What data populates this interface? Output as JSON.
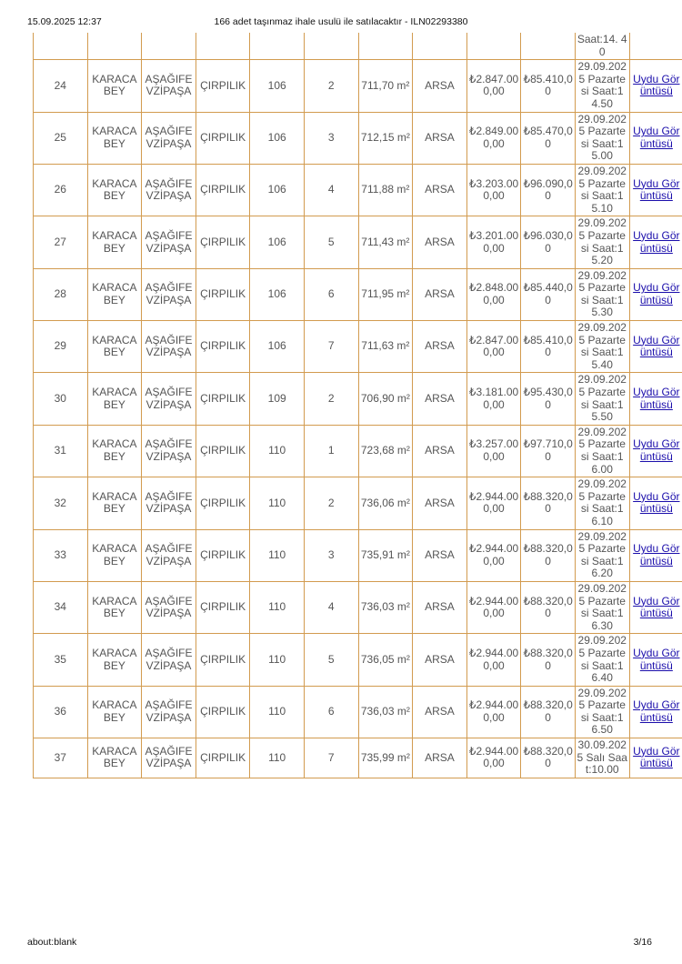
{
  "header": {
    "datetime": "15.09.2025 12:37",
    "title": "166 adet taşınmaz ihale usulü ile satılacaktır - ILN02293380"
  },
  "footer": {
    "url": "about:blank",
    "page": "3/16"
  },
  "partial_row": {
    "date": "Saat:14. 40"
  },
  "link_label": "Uydu Görüntüsü",
  "rows": [
    {
      "no": "24",
      "ilce": "KARACABEY",
      "mahalle": "AŞAĞIFEVZİPAŞA",
      "mevki": "ÇIRPILIK",
      "ada": "106",
      "parsel": "2",
      "alan": "711,70 m²",
      "nitelik": "ARSA",
      "bedel": "₺2.847.000,00",
      "teminat": "₺85.410,00",
      "tarih": "29.09.2025 Pazartesi Saat:14.50"
    },
    {
      "no": "25",
      "ilce": "KARACABEY",
      "mahalle": "AŞAĞIFEVZİPAŞA",
      "mevki": "ÇIRPILIK",
      "ada": "106",
      "parsel": "3",
      "alan": "712,15 m²",
      "nitelik": "ARSA",
      "bedel": "₺2.849.000,00",
      "teminat": "₺85.470,00",
      "tarih": "29.09.2025 Pazartesi Saat:15.00"
    },
    {
      "no": "26",
      "ilce": "KARACABEY",
      "mahalle": "AŞAĞIFEVZİPAŞA",
      "mevki": "ÇIRPILIK",
      "ada": "106",
      "parsel": "4",
      "alan": "711,88 m²",
      "nitelik": "ARSA",
      "bedel": "₺3.203.000,00",
      "teminat": "₺96.090,00",
      "tarih": "29.09.2025 Pazartesi Saat:15.10"
    },
    {
      "no": "27",
      "ilce": "KARACABEY",
      "mahalle": "AŞAĞIFEVZİPAŞA",
      "mevki": "ÇIRPILIK",
      "ada": "106",
      "parsel": "5",
      "alan": "711,43 m²",
      "nitelik": "ARSA",
      "bedel": "₺3.201.000,00",
      "teminat": "₺96.030,00",
      "tarih": "29.09.2025 Pazartesi Saat:15.20"
    },
    {
      "no": "28",
      "ilce": "KARACABEY",
      "mahalle": "AŞAĞIFEVZİPAŞA",
      "mevki": "ÇIRPILIK",
      "ada": "106",
      "parsel": "6",
      "alan": "711,95 m²",
      "nitelik": "ARSA",
      "bedel": "₺2.848.000,00",
      "teminat": "₺85.440,00",
      "tarih": "29.09.2025 Pazartesi Saat:15.30"
    },
    {
      "no": "29",
      "ilce": "KARACABEY",
      "mahalle": "AŞAĞIFEVZİPAŞA",
      "mevki": "ÇIRPILIK",
      "ada": "106",
      "parsel": "7",
      "alan": "711,63 m²",
      "nitelik": "ARSA",
      "bedel": "₺2.847.000,00",
      "teminat": "₺85.410,00",
      "tarih": "29.09.2025 Pazartesi Saat:15.40"
    },
    {
      "no": "30",
      "ilce": "KARACABEY",
      "mahalle": "AŞAĞIFEVZİPAŞA",
      "mevki": "ÇIRPILIK",
      "ada": "109",
      "parsel": "2",
      "alan": "706,90 m²",
      "nitelik": "ARSA",
      "bedel": "₺3.181.000,00",
      "teminat": "₺95.430,00",
      "tarih": "29.09.2025 Pazartesi Saat:15.50"
    },
    {
      "no": "31",
      "ilce": "KARACABEY",
      "mahalle": "AŞAĞIFEVZİPAŞA",
      "mevki": "ÇIRPILIK",
      "ada": "110",
      "parsel": "1",
      "alan": "723,68 m²",
      "nitelik": "ARSA",
      "bedel": "₺3.257.000,00",
      "teminat": "₺97.710,00",
      "tarih": "29.09.2025 Pazartesi Saat:16.00"
    },
    {
      "no": "32",
      "ilce": "KARACABEY",
      "mahalle": "AŞAĞIFEVZİPAŞA",
      "mevki": "ÇIRPILIK",
      "ada": "110",
      "parsel": "2",
      "alan": "736,06 m²",
      "nitelik": "ARSA",
      "bedel": "₺2.944.000,00",
      "teminat": "₺88.320,00",
      "tarih": "29.09.2025 Pazartesi Saat:16.10"
    },
    {
      "no": "33",
      "ilce": "KARACABEY",
      "mahalle": "AŞAĞIFEVZİPAŞA",
      "mevki": "ÇIRPILIK",
      "ada": "110",
      "parsel": "3",
      "alan": "735,91 m²",
      "nitelik": "ARSA",
      "bedel": "₺2.944.000,00",
      "teminat": "₺88.320,00",
      "tarih": "29.09.2025 Pazartesi Saat:16.20"
    },
    {
      "no": "34",
      "ilce": "KARACABEY",
      "mahalle": "AŞAĞIFEVZİPAŞA",
      "mevki": "ÇIRPILIK",
      "ada": "110",
      "parsel": "4",
      "alan": "736,03 m²",
      "nitelik": "ARSA",
      "bedel": "₺2.944.000,00",
      "teminat": "₺88.320,00",
      "tarih": "29.09.2025 Pazartesi Saat:16.30"
    },
    {
      "no": "35",
      "ilce": "KARACABEY",
      "mahalle": "AŞAĞIFEVZİPAŞA",
      "mevki": "ÇIRPILIK",
      "ada": "110",
      "parsel": "5",
      "alan": "736,05 m²",
      "nitelik": "ARSA",
      "bedel": "₺2.944.000,00",
      "teminat": "₺88.320,00",
      "tarih": "29.09.2025 Pazartesi Saat:16.40"
    },
    {
      "no": "36",
      "ilce": "KARACABEY",
      "mahalle": "AŞAĞIFEVZİPAŞA",
      "mevki": "ÇIRPILIK",
      "ada": "110",
      "parsel": "6",
      "alan": "736,03 m²",
      "nitelik": "ARSA",
      "bedel": "₺2.944.000,00",
      "teminat": "₺88.320,00",
      "tarih": "29.09.2025 Pazartesi Saat:16.50"
    },
    {
      "no": "37",
      "ilce": "KARACABEY",
      "mahalle": "AŞAĞIFEVZİPAŞA",
      "mevki": "ÇIRPILIK",
      "ada": "110",
      "parsel": "7",
      "alan": "735,99 m²",
      "nitelik": "ARSA",
      "bedel": "₺2.944.000,00",
      "teminat": "₺88.320,00",
      "tarih": "30.09.2025 Salı Saat:10.00"
    }
  ]
}
